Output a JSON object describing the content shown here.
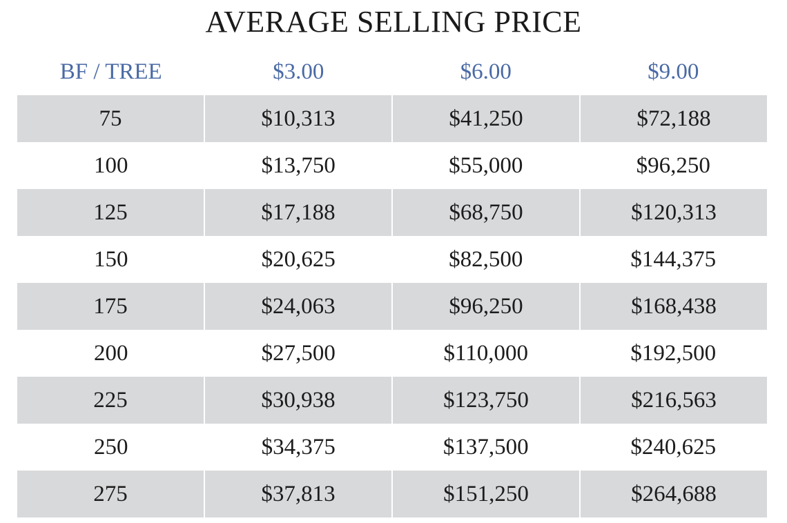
{
  "title": "AVERAGE SELLING PRICE",
  "headers": [
    "BF / TREE",
    "$3.00",
    "$6.00",
    "$9.00"
  ],
  "rows": [
    [
      "75",
      "$10,313",
      "$41,250",
      "$72,188"
    ],
    [
      "100",
      "$13,750",
      "$55,000",
      "$96,250"
    ],
    [
      "125",
      "$17,188",
      "$68,750",
      "$120,313"
    ],
    [
      "150",
      "$20,625",
      "$82,500",
      "$144,375"
    ],
    [
      "175",
      "$24,063",
      "$96,250",
      "$168,438"
    ],
    [
      "200",
      "$27,500",
      "$110,000",
      "$192,500"
    ],
    [
      "225",
      "$30,938",
      "$123,750",
      "$216,563"
    ],
    [
      "250",
      "$34,375",
      "$137,500",
      "$240,625"
    ],
    [
      "275",
      "$37,813",
      "$151,250",
      "$264,688"
    ]
  ],
  "colors": {
    "header_text": "#4a6aa5",
    "shaded_row": "#d8d9db"
  }
}
